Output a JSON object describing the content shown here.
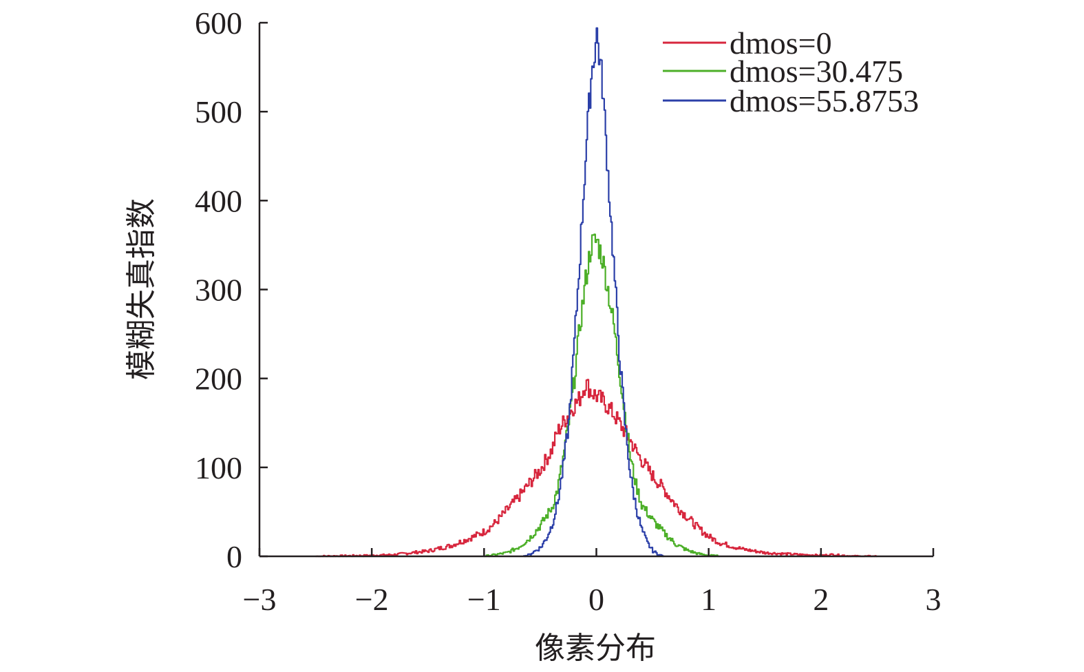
{
  "chart_data": {
    "type": "line",
    "xlabel": "像素分布",
    "ylabel": "模糊失真指数",
    "xlim": [
      -3,
      3
    ],
    "ylim": [
      0,
      600
    ],
    "xticks": [
      -3,
      -2,
      -1,
      0,
      1,
      2,
      3
    ],
    "xtick_labels": [
      "−3",
      "−2",
      "−1",
      "0",
      "1",
      "2",
      "3"
    ],
    "yticks": [
      0,
      100,
      200,
      300,
      400,
      500,
      600
    ],
    "ytick_labels": [
      "0",
      "100",
      "200",
      "300",
      "400",
      "500",
      "600"
    ],
    "grid": false,
    "legend_position": "top-right",
    "series": [
      {
        "name": "dmos=0",
        "color": "#d7263d",
        "x": [
          -2.5,
          -2.0,
          -1.8,
          -1.5,
          -1.3,
          -1.1,
          -1.0,
          -0.9,
          -0.8,
          -0.7,
          -0.6,
          -0.5,
          -0.4,
          -0.35,
          -0.3,
          -0.25,
          -0.2,
          -0.15,
          -0.1,
          -0.05,
          0.0,
          0.05,
          0.1,
          0.15,
          0.2,
          0.25,
          0.3,
          0.35,
          0.4,
          0.5,
          0.6,
          0.7,
          0.8,
          0.9,
          1.0,
          1.1,
          1.3,
          1.5,
          1.8,
          2.0,
          2.1,
          2.3,
          2.5
        ],
        "y": [
          0,
          1,
          2,
          6,
          12,
          22,
          28,
          38,
          52,
          66,
          82,
          98,
          120,
          140,
          150,
          160,
          170,
          178,
          195,
          185,
          180,
          175,
          168,
          160,
          150,
          140,
          130,
          118,
          108,
          90,
          75,
          58,
          45,
          32,
          22,
          15,
          8,
          4,
          2,
          1,
          2,
          0,
          0
        ]
      },
      {
        "name": "dmos=30.475",
        "color": "#4caf28",
        "x": [
          -1.0,
          -0.8,
          -0.7,
          -0.6,
          -0.5,
          -0.4,
          -0.35,
          -0.3,
          -0.25,
          -0.2,
          -0.15,
          -0.1,
          -0.05,
          0.0,
          0.05,
          0.1,
          0.15,
          0.2,
          0.25,
          0.3,
          0.35,
          0.4,
          0.5,
          0.6,
          0.7,
          0.8,
          0.9,
          1.0,
          1.1
        ],
        "y": [
          0,
          4,
          10,
          20,
          35,
          55,
          75,
          110,
          150,
          200,
          260,
          310,
          350,
          355,
          335,
          300,
          260,
          210,
          160,
          110,
          80,
          58,
          40,
          26,
          14,
          7,
          3,
          1,
          0
        ]
      },
      {
        "name": "dmos=55.8753",
        "color": "#2b3fa8",
        "x": [
          -0.65,
          -0.6,
          -0.5,
          -0.45,
          -0.4,
          -0.35,
          -0.3,
          -0.25,
          -0.2,
          -0.15,
          -0.1,
          -0.05,
          0.0,
          0.05,
          0.1,
          0.15,
          0.2,
          0.25,
          0.3,
          0.35,
          0.4,
          0.45,
          0.5,
          0.55,
          0.6
        ],
        "y": [
          0,
          2,
          10,
          20,
          35,
          60,
          100,
          150,
          240,
          340,
          450,
          540,
          588,
          530,
          430,
          330,
          230,
          150,
          90,
          55,
          30,
          15,
          6,
          2,
          0
        ]
      }
    ]
  }
}
